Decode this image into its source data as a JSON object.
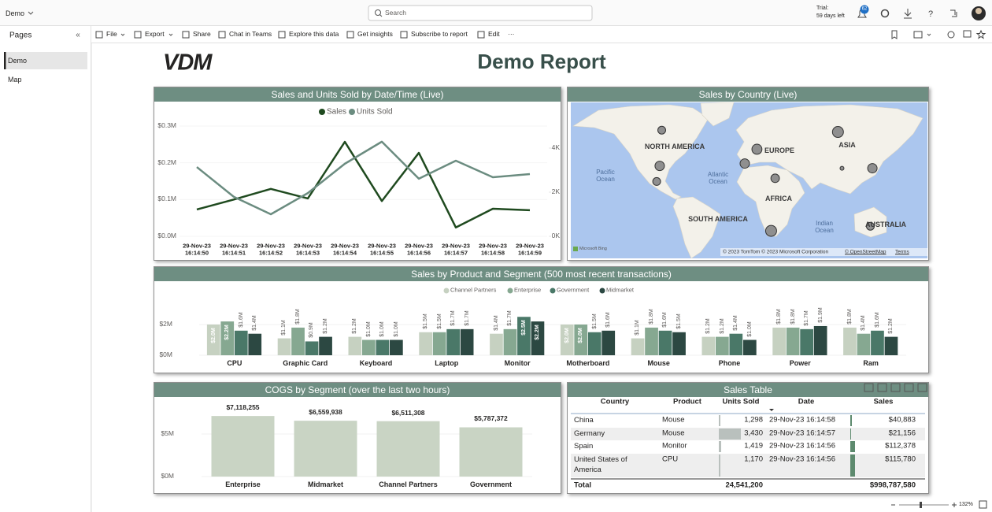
{
  "app": {
    "file_name": "Demo",
    "search_placeholder": "Search",
    "trial_label": "Trial:",
    "trial_days": "59 days left",
    "notification_count": "62"
  },
  "toolbar": {
    "items": [
      "File",
      "Export",
      "Share",
      "Chat in Teams",
      "Explore this data",
      "Get insights",
      "Subscribe to report",
      "Edit",
      "···"
    ]
  },
  "pages_pane": {
    "title": "Pages",
    "pages": [
      "Demo",
      "Map"
    ]
  },
  "report": {
    "logo": "VDM",
    "title": "Demo Report"
  },
  "line_chart": {
    "type": "line",
    "title": "Sales and Units Sold by Date/Time (Live)",
    "categories": [
      "29-Nov-23 16:14:50",
      "29-Nov-23 16:14:51",
      "29-Nov-23 16:14:52",
      "29-Nov-23 16:14:53",
      "29-Nov-23 16:14:54",
      "29-Nov-23 16:14:55",
      "29-Nov-23 16:14:56",
      "29-Nov-23 16:14:57",
      "29-Nov-23 16:14:58",
      "29-Nov-23 16:14:59"
    ],
    "series": [
      {
        "name": "Sales",
        "color": "#1f4a1f",
        "values": [
          73000,
          100000,
          129000,
          103000,
          257000,
          96000,
          227000,
          24000,
          75000,
          71000
        ]
      },
      {
        "name": "Units Sold",
        "color": "#6b8c80",
        "axis": "y2",
        "values": [
          3140,
          1790,
          1000,
          1960,
          3290,
          4290,
          2610,
          3430,
          2680,
          2820
        ]
      }
    ],
    "ylim": [
      0,
      300000
    ],
    "yticks": [
      {
        "value": 0,
        "label": "$0.0M"
      },
      {
        "value": 100000,
        "label": "$0.1M"
      },
      {
        "value": 200000,
        "label": "$0.2M"
      },
      {
        "value": 300000,
        "label": "$0.3M"
      }
    ],
    "y2lim": [
      0,
      5000
    ],
    "y2ticks": [
      {
        "value": 0,
        "label": "0K"
      },
      {
        "value": 2000,
        "label": "2K"
      },
      {
        "value": 4000,
        "label": "4K"
      }
    ]
  },
  "map_chart": {
    "type": "map",
    "title": "Sales by Country (Live)",
    "region_labels": [
      "NORTH AMERICA",
      "EUROPE",
      "ASIA",
      "AFRICA",
      "SOUTH AMERICA",
      "AUSTRALIA"
    ],
    "ocean_labels": [
      "Pacific Ocean",
      "Atlantic Ocean",
      "Indian Ocean"
    ],
    "provider": "Microsoft Bing",
    "attribution": "© 2023 TomTom © 2023 Microsoft Corporation",
    "attribution_links": [
      "© OpenStreetMap",
      "Terms"
    ],
    "bubble_color": "#8f8f8f",
    "bubbles": [
      {
        "lon": -96,
        "lat": 56,
        "value": 61000
      },
      {
        "lon": -98,
        "lat": 31,
        "value": 88000
      },
      {
        "lon": -101,
        "lat": 17,
        "value": 61000
      },
      {
        "lon": -2,
        "lat": 44,
        "value": 100000
      },
      {
        "lon": -14,
        "lat": 33,
        "value": 88000
      },
      {
        "lon": 16,
        "lat": 20,
        "value": 72000
      },
      {
        "lon": 78,
        "lat": 55,
        "value": 120000
      },
      {
        "lon": 82,
        "lat": 29,
        "value": 15000
      },
      {
        "lon": 112,
        "lat": 29,
        "value": 88000
      },
      {
        "lon": 12,
        "lat": -30,
        "value": 120000
      },
      {
        "lon": 110,
        "lat": -26,
        "value": 61000
      }
    ]
  },
  "product_chart": {
    "type": "bar",
    "title": "Sales by Product and Segment (500 most recent transactions)",
    "categories": [
      "CPU",
      "Graphic Card",
      "Keyboard",
      "Laptop",
      "Monitor",
      "Motherboard",
      "Mouse",
      "Phone",
      "Power",
      "Ram"
    ],
    "series": [
      {
        "name": "Channel Partners",
        "color": "#c6d1c1",
        "values": [
          2000000,
          1100000,
          1200000,
          1500000,
          1400000,
          2000000,
          1100000,
          1200000,
          1800000,
          1800000
        ],
        "value_labels": [
          "$2.0M",
          "$1.1M",
          "$1.2M",
          "$1.5M",
          "$1.4M",
          "$2.0M",
          "$1.1M",
          "$1.2M",
          "$1.8M",
          "$1.8M"
        ]
      },
      {
        "name": "Enterprise",
        "color": "#86a891",
        "values": [
          2200000,
          1800000,
          1000000,
          1500000,
          1700000,
          2000000,
          1800000,
          1200000,
          1800000,
          1400000
        ],
        "value_labels": [
          "$2.2M",
          "$1.8M",
          "$1.0M",
          "$1.5M",
          "$1.7M",
          "$2.0M",
          "$1.8M",
          "$1.2M",
          "$1.8M",
          "$1.4M"
        ]
      },
      {
        "name": "Government",
        "color": "#4a7868",
        "values": [
          1600000,
          900000,
          1000000,
          1700000,
          2500000,
          1500000,
          1600000,
          1400000,
          1700000,
          1600000
        ],
        "value_labels": [
          "$1.6M",
          "$0.9M",
          "$1.0M",
          "$1.7M",
          "$2.5M",
          "$1.5M",
          "$1.6M",
          "$1.4M",
          "$1.7M",
          "$1.6M"
        ]
      },
      {
        "name": "Midmarket",
        "color": "#2c4842",
        "values": [
          1400000,
          1200000,
          1000000,
          1700000,
          2200000,
          1600000,
          1500000,
          1000000,
          1900000,
          1200000
        ],
        "value_labels": [
          "$1.4M",
          "$1.2M",
          "$1.0M",
          "$1.7M",
          "$2.2M",
          "$1.6M",
          "$1.5M",
          "$1.0M",
          "$1.9M",
          "$1.2M"
        ]
      }
    ],
    "ylim": [
      0,
      4000000
    ],
    "yticks": [
      {
        "value": 0,
        "label": "$0M"
      },
      {
        "value": 2000000,
        "label": "$2M"
      }
    ]
  },
  "cogs_chart": {
    "type": "bar",
    "title": "COGS by Segment (over the last two hours)",
    "categories": [
      "Enterprise",
      "Midmarket",
      "Channel Partners",
      "Government"
    ],
    "values": [
      7118255,
      6559938,
      6511308,
      5787372
    ],
    "value_labels": [
      "$7,118,255",
      "$6,559,938",
      "$6,511,308",
      "$5,787,372"
    ],
    "color": "#c9d4c4",
    "ylim": [
      0,
      8000000
    ],
    "yticks": [
      {
        "value": 0,
        "label": "$0M"
      },
      {
        "value": 5000000,
        "label": "$5M"
      }
    ]
  },
  "table": {
    "title": "Sales Table",
    "columns": [
      "Country",
      "Product",
      "Units Sold",
      "Date",
      "Sales"
    ],
    "rows": [
      [
        "China",
        "Mouse",
        "1,298",
        "29-Nov-23 16:14:58",
        "$40,883"
      ],
      [
        "Germany",
        "Mouse",
        "3,430",
        "29-Nov-23 16:14:57",
        "$21,156"
      ],
      [
        "Spain",
        "Monitor",
        "1,419",
        "29-Nov-23 16:14:56",
        "$112,378"
      ],
      [
        "United States of America",
        "CPU",
        "1,170",
        "29-Nov-23 16:14:56",
        "$115,780"
      ]
    ],
    "total": {
      "label": "Total",
      "units_sold": "24,541,200",
      "sales": "$998,787,580"
    }
  },
  "status": {
    "zoom": "132%"
  }
}
